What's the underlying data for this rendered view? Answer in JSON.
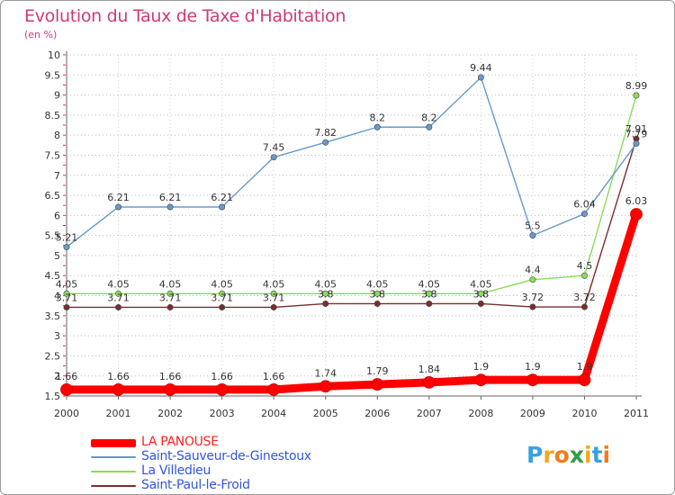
{
  "header": {
    "title": "Evolution du Taux de Taxe d'Habitation",
    "unit": "(en %)"
  },
  "chart_data": {
    "type": "line",
    "title": "Evolution du Taux de Taxe d'Habitation",
    "ylabel": "(en %)",
    "xlabel": "",
    "categories": [
      "2000",
      "2001",
      "2002",
      "2003",
      "2004",
      "2005",
      "2006",
      "2007",
      "2008",
      "2009",
      "2010",
      "2011"
    ],
    "ylim": [
      1.5,
      10
    ],
    "yticks": [
      "1.5",
      "2",
      "2.5",
      "3",
      "3.5",
      "4",
      "4.5",
      "5",
      "5.5",
      "6",
      "6.5",
      "7",
      "7.5",
      "8",
      "8.5",
      "9",
      "9.5",
      "10"
    ],
    "grid": "horizontal dotted",
    "legend_position": "bottom-left",
    "series": [
      {
        "name": "LA PANOUSE",
        "color": "#ff0000",
        "values": [
          1.66,
          1.66,
          1.66,
          1.66,
          1.66,
          1.74,
          1.79,
          1.84,
          1.9,
          1.9,
          1.9,
          6.03
        ],
        "labels": [
          "1.66",
          "1.66",
          "1.66",
          "1.66",
          "1.66",
          "1.74",
          "1.79",
          "1.84",
          "1.9",
          "1.9",
          "1.9",
          "6.03"
        ]
      },
      {
        "name": "Saint-Sauveur-de-Ginestoux",
        "color": "#6699cc",
        "values": [
          5.21,
          6.21,
          6.21,
          6.21,
          7.45,
          7.82,
          8.2,
          8.2,
          9.44,
          5.5,
          6.04,
          7.79
        ],
        "labels": [
          "5.21",
          "6.21",
          "6.21",
          "6.21",
          "7.45",
          "7.82",
          "8.2",
          "8.2",
          "9.44",
          "5.5",
          "6.04",
          "7.79"
        ]
      },
      {
        "name": "La Villedieu",
        "color": "#88dd55",
        "values": [
          4.05,
          4.05,
          4.05,
          4.05,
          4.05,
          4.05,
          4.05,
          4.05,
          4.05,
          4.4,
          4.5,
          8.99
        ],
        "labels": [
          "4.05",
          "4.05",
          "4.05",
          "4.05",
          "4.05",
          "4.05",
          "4.05",
          "4.05",
          "4.05",
          "4.4",
          "4.5",
          "8.99"
        ]
      },
      {
        "name": "Saint-Paul-le-Froid",
        "color": "#7a2c2c",
        "values": [
          3.71,
          3.71,
          3.71,
          3.71,
          3.71,
          3.8,
          3.8,
          3.8,
          3.8,
          3.72,
          3.72,
          7.91
        ],
        "labels": [
          "3.71",
          "3.71",
          "3.71",
          "3.71",
          "3.71",
          "3.8",
          "3.8",
          "3.8",
          "3.8",
          "3.72",
          "3.72",
          "7.91"
        ]
      }
    ]
  },
  "legend": {
    "items": [
      {
        "label": "LA PANOUSE",
        "color": "#ff0000",
        "text_color": "#ff2222"
      },
      {
        "label": "Saint-Sauveur-de-Ginestoux",
        "color": "#6699cc",
        "text_color": "#3355dd"
      },
      {
        "label": "La Villedieu",
        "color": "#88dd55",
        "text_color": "#3355dd"
      },
      {
        "label": "Saint-Paul-le-Froid",
        "color": "#7a2c2c",
        "text_color": "#3355dd"
      }
    ]
  },
  "logo": {
    "text": "Proxiti",
    "letters": [
      {
        "ch": "P",
        "color": "#3aa0e0"
      },
      {
        "ch": "r",
        "color": "#f5a623"
      },
      {
        "ch": "o",
        "color": "#f07d1a"
      },
      {
        "ch": "x",
        "color": "#2f9e44"
      },
      {
        "ch": "i",
        "color": "#f5a623"
      },
      {
        "ch": "t",
        "color": "#3aa0e0"
      },
      {
        "ch": "i",
        "color": "#f07d1a"
      }
    ]
  }
}
